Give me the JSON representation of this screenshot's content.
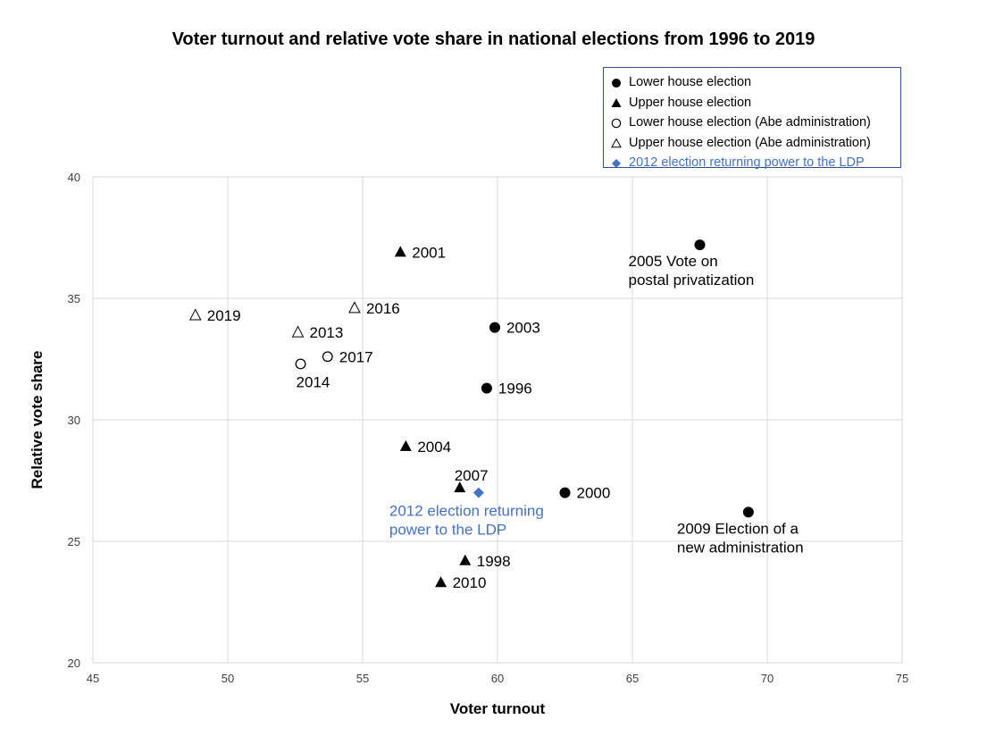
{
  "chart_data": {
    "type": "scatter",
    "title": "Voter turnout and relative vote share in national elections from 1996 to 2019",
    "xlabel": "Voter turnout",
    "ylabel": "Relative vote share",
    "xlim": [
      45,
      75
    ],
    "ylim": [
      20,
      40
    ],
    "xticks": [
      "45",
      "50",
      "55",
      "60",
      "65",
      "70",
      "75"
    ],
    "yticks": [
      "20",
      "25",
      "30",
      "35",
      "40"
    ],
    "grid": true,
    "legend_position": "top-right",
    "colors": {
      "black": "#000000",
      "highlight": "#4472c4",
      "grid": "#d9d9d9"
    },
    "legend": [
      {
        "marker": "filled-circle",
        "label": "Lower house election",
        "color": "#000000"
      },
      {
        "marker": "filled-triangle",
        "label": "Upper house election",
        "color": "#000000"
      },
      {
        "marker": "open-circle",
        "label": "Lower house election (Abe administration)",
        "color": "#000000"
      },
      {
        "marker": "open-triangle",
        "label": "Upper house election (Abe administration)",
        "color": "#000000"
      },
      {
        "marker": "diamond",
        "label": "2012 election returning power to the LDP",
        "color": "#4472c4"
      }
    ],
    "points": [
      {
        "x": 59.6,
        "y": 31.3,
        "marker": "filled-circle",
        "label": [
          "1996"
        ],
        "label_pos": "right"
      },
      {
        "x": 62.5,
        "y": 27.0,
        "marker": "filled-circle",
        "label": [
          "2000"
        ],
        "label_pos": "right"
      },
      {
        "x": 59.9,
        "y": 33.8,
        "marker": "filled-circle",
        "label": [
          "2003"
        ],
        "label_pos": "right"
      },
      {
        "x": 67.5,
        "y": 37.2,
        "marker": "filled-circle",
        "label": [
          "2005 Vote on",
          "postal privatization"
        ],
        "label_pos": "below"
      },
      {
        "x": 69.3,
        "y": 26.2,
        "marker": "filled-circle",
        "label": [
          "2009 Election of a",
          "new administration"
        ],
        "label_pos": "below"
      },
      {
        "x": 58.8,
        "y": 24.2,
        "marker": "filled-triangle",
        "label": [
          "1998"
        ],
        "label_pos": "right"
      },
      {
        "x": 56.4,
        "y": 36.9,
        "marker": "filled-triangle",
        "label": [
          "2001"
        ],
        "label_pos": "right"
      },
      {
        "x": 56.6,
        "y": 28.9,
        "marker": "filled-triangle",
        "label": [
          "2004"
        ],
        "label_pos": "right"
      },
      {
        "x": 58.6,
        "y": 27.2,
        "marker": "filled-triangle",
        "label": [
          "2007"
        ],
        "label_pos": "above"
      },
      {
        "x": 57.9,
        "y": 23.3,
        "marker": "filled-triangle",
        "label": [
          "2010"
        ],
        "label_pos": "right"
      },
      {
        "x": 52.7,
        "y": 32.3,
        "marker": "open-circle",
        "label": [
          "2014"
        ],
        "label_pos": "below"
      },
      {
        "x": 53.7,
        "y": 32.6,
        "marker": "open-circle",
        "label": [
          "2017"
        ],
        "label_pos": "right"
      },
      {
        "x": 52.6,
        "y": 33.6,
        "marker": "open-triangle",
        "label": [
          "2013"
        ],
        "label_pos": "right"
      },
      {
        "x": 54.7,
        "y": 34.6,
        "marker": "open-triangle",
        "label": [
          "2016"
        ],
        "label_pos": "right"
      },
      {
        "x": 48.8,
        "y": 34.3,
        "marker": "open-triangle",
        "label": [
          "2019"
        ],
        "label_pos": "right"
      },
      {
        "x": 59.3,
        "y": 27.0,
        "marker": "diamond",
        "label": [
          "2012 election returning",
          "power to the LDP"
        ],
        "label_pos": "below-left",
        "color": "#4472c4"
      }
    ]
  }
}
